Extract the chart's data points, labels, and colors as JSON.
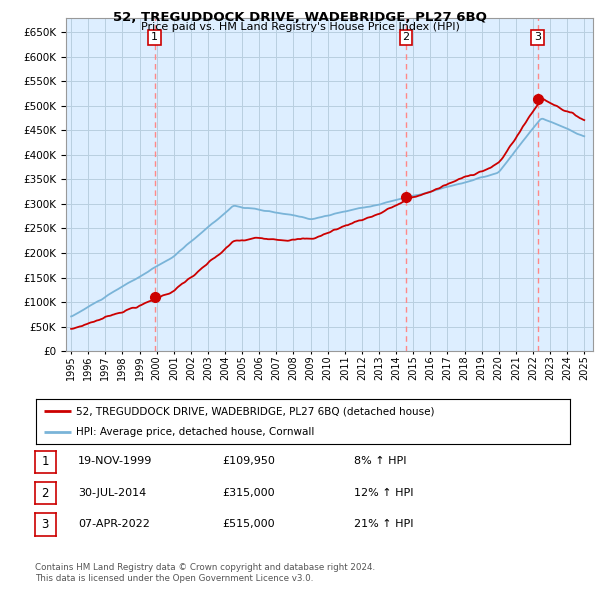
{
  "title": "52, TREGUDDOCK DRIVE, WADEBRIDGE, PL27 6BQ",
  "subtitle": "Price paid vs. HM Land Registry's House Price Index (HPI)",
  "legend_line1": "52, TREGUDDOCK DRIVE, WADEBRIDGE, PL27 6BQ (detached house)",
  "legend_line2": "HPI: Average price, detached house, Cornwall",
  "sale_points": [
    {
      "label": "1",
      "date": "19-NOV-1999",
      "price": 109950,
      "x": 1999.88
    },
    {
      "label": "2",
      "date": "30-JUL-2014",
      "price": 315000,
      "x": 2014.58
    },
    {
      "label": "3",
      "date": "07-APR-2022",
      "price": 515000,
      "x": 2022.27
    }
  ],
  "table_rows": [
    [
      "1",
      "19-NOV-1999",
      "£109,950",
      "8% ↑ HPI"
    ],
    [
      "2",
      "30-JUL-2014",
      "£315,000",
      "12% ↑ HPI"
    ],
    [
      "3",
      "07-APR-2022",
      "£515,000",
      "21% ↑ HPI"
    ]
  ],
  "footer_line1": "Contains HM Land Registry data © Crown copyright and database right 2024.",
  "footer_line2": "This data is licensed under the Open Government Licence v3.0.",
  "hpi_color": "#7ab4d8",
  "price_color": "#CC0000",
  "vline_color": "#FF8888",
  "chart_bg": "#ddeeff",
  "bg_color": "#FFFFFF",
  "grid_color": "#b8cfe0",
  "ylim": [
    0,
    680000
  ],
  "xlim_start": 1994.7,
  "xlim_end": 2025.5,
  "yticks": [
    0,
    50000,
    100000,
    150000,
    200000,
    250000,
    300000,
    350000,
    400000,
    450000,
    500000,
    550000,
    600000,
    650000
  ],
  "xticks": [
    1995,
    1996,
    1997,
    1998,
    1999,
    2000,
    2001,
    2002,
    2003,
    2004,
    2005,
    2006,
    2007,
    2008,
    2009,
    2010,
    2011,
    2012,
    2013,
    2014,
    2015,
    2016,
    2017,
    2018,
    2019,
    2020,
    2021,
    2022,
    2023,
    2024,
    2025
  ]
}
